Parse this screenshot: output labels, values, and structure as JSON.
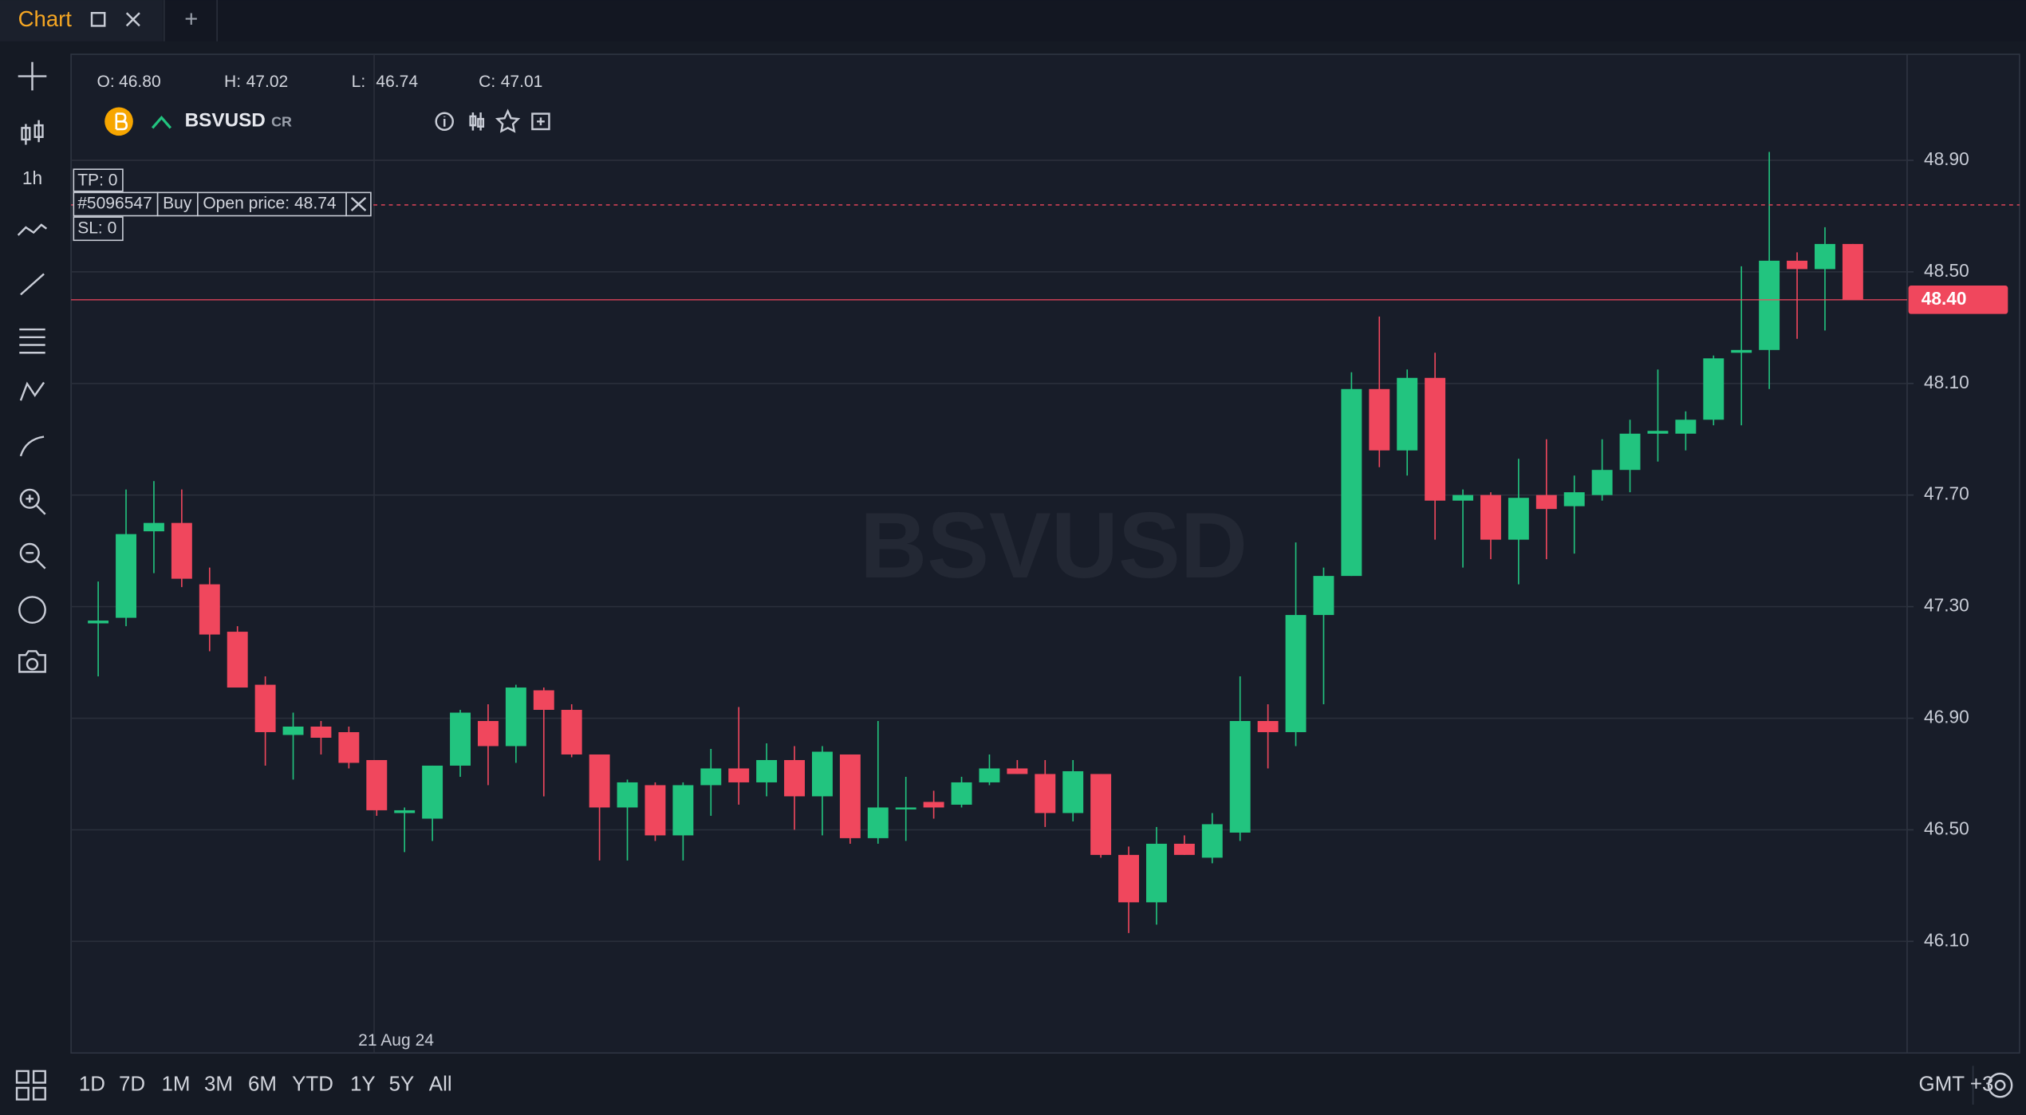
{
  "tabs": {
    "active": "Chart",
    "new": "+"
  },
  "toolbar": {
    "interval": "1h"
  },
  "header": {
    "ohlc": [
      {
        "label": "O:",
        "value": "46.80"
      },
      {
        "label": "H:",
        "value": "47.02"
      },
      {
        "label": "L:",
        "value": "46.74"
      },
      {
        "label": "C:",
        "value": "47.01"
      }
    ],
    "symbol": "BSVUSD",
    "exchange": "CR"
  },
  "order": {
    "tp": "TP: 0",
    "id": "#5096547",
    "side": "Buy",
    "sl": "SL: 0"
  },
  "chart_data": {
    "type": "candlestick",
    "watermark": "BSVUSD",
    "categories": [
      null,
      null,
      null,
      null,
      null,
      null,
      null,
      null,
      null,
      null,
      "21 Aug 24",
      null,
      null,
      null,
      null,
      null,
      null,
      null,
      null,
      null,
      null,
      null,
      null,
      null,
      null,
      null,
      null,
      null,
      null,
      null,
      null,
      null,
      null,
      null,
      null,
      null,
      null,
      null,
      null,
      null,
      null,
      null,
      null,
      null,
      null,
      null,
      null,
      null,
      null,
      null,
      null,
      null,
      null,
      null,
      null,
      null,
      null,
      null,
      null,
      null,
      null,
      null,
      null,
      null
    ],
    "open": [
      47.24,
      47.26,
      47.57,
      47.6,
      47.38,
      47.21,
      47.02,
      46.84,
      46.87,
      46.85,
      46.75,
      46.56,
      46.54,
      46.73,
      46.89,
      46.8,
      47.0,
      46.93,
      46.77,
      46.58,
      46.66,
      46.48,
      46.66,
      46.72,
      46.67,
      46.75,
      46.62,
      46.77,
      46.47,
      46.58,
      46.6,
      46.59,
      46.67,
      46.72,
      46.7,
      46.56,
      46.7,
      46.41,
      46.24,
      46.45,
      46.4,
      46.49,
      46.89,
      46.85,
      47.27,
      47.41,
      48.08,
      47.86,
      48.12,
      47.68,
      47.7,
      47.54,
      47.7,
      47.66,
      47.7,
      47.79,
      47.92,
      47.92,
      47.97,
      48.21,
      48.22,
      48.54,
      48.51,
      48.6
    ],
    "high": [
      47.39,
      47.72,
      47.75,
      47.72,
      47.44,
      47.23,
      47.05,
      46.92,
      46.89,
      46.87,
      46.75,
      46.58,
      46.73,
      46.93,
      46.95,
      47.02,
      47.01,
      46.95,
      46.77,
      46.68,
      46.67,
      46.67,
      46.79,
      46.94,
      46.81,
      46.8,
      46.8,
      46.77,
      46.89,
      46.69,
      46.64,
      46.69,
      46.77,
      46.75,
      46.75,
      46.75,
      46.7,
      46.44,
      46.51,
      46.48,
      46.56,
      47.05,
      46.95,
      47.53,
      47.44,
      48.14,
      48.34,
      48.15,
      48.21,
      47.72,
      47.71,
      47.83,
      47.9,
      47.77,
      47.9,
      47.97,
      48.15,
      48.0,
      48.2,
      48.52,
      48.93,
      48.57,
      48.66,
      48.6
    ],
    "low": [
      47.05,
      47.23,
      47.42,
      47.37,
      47.14,
      47.01,
      46.73,
      46.68,
      46.77,
      46.72,
      46.55,
      46.42,
      46.46,
      46.69,
      46.66,
      46.74,
      46.62,
      46.76,
      46.39,
      46.39,
      46.46,
      46.39,
      46.55,
      46.59,
      46.62,
      46.5,
      46.48,
      46.45,
      46.45,
      46.46,
      46.54,
      46.58,
      46.66,
      46.7,
      46.51,
      46.53,
      46.4,
      46.13,
      46.16,
      46.41,
      46.38,
      46.46,
      46.72,
      46.8,
      46.95,
      47.41,
      47.8,
      47.77,
      47.54,
      47.44,
      47.47,
      47.38,
      47.47,
      47.49,
      47.68,
      47.71,
      47.82,
      47.86,
      47.95,
      47.95,
      48.08,
      48.26,
      48.29,
      48.4
    ],
    "close": [
      47.25,
      47.56,
      47.6,
      47.4,
      47.2,
      47.01,
      46.85,
      46.87,
      46.83,
      46.74,
      46.57,
      46.57,
      46.73,
      46.92,
      46.8,
      47.01,
      46.93,
      46.77,
      46.58,
      46.67,
      46.48,
      46.66,
      46.72,
      46.67,
      46.75,
      46.62,
      46.78,
      46.47,
      46.58,
      46.58,
      46.58,
      46.67,
      46.72,
      46.7,
      46.56,
      46.71,
      46.41,
      46.24,
      46.45,
      46.41,
      46.52,
      46.89,
      46.85,
      47.27,
      47.41,
      48.08,
      47.86,
      48.12,
      47.68,
      47.7,
      47.54,
      47.69,
      47.65,
      47.71,
      47.79,
      47.92,
      47.93,
      47.97,
      48.19,
      48.22,
      48.54,
      48.51,
      48.6,
      48.4
    ],
    "up_color": "#22c47f",
    "down_color": "#f0475d",
    "ylim": [
      45.7,
      49.28
    ],
    "yticks": [
      {
        "value": 46.1,
        "label": "46.10"
      },
      {
        "value": 46.5,
        "label": "46.50"
      },
      {
        "value": 46.9,
        "label": "46.90"
      },
      {
        "value": 47.3,
        "label": "47.30"
      },
      {
        "value": 47.7,
        "label": "47.70"
      },
      {
        "value": 48.1,
        "label": "48.10"
      },
      {
        "value": 48.5,
        "label": "48.50"
      },
      {
        "value": 48.9,
        "label": "48.90"
      }
    ],
    "grid": true,
    "order_price": {
      "value": 48.74,
      "label": "Open price: 48.74"
    },
    "last_price": {
      "value": 48.4,
      "label": "48.40"
    },
    "last_price_color": "#f0475d"
  },
  "ranges": [
    "1D",
    "7D",
    "1M",
    "3M",
    "6M",
    "YTD",
    "1Y",
    "5Y",
    "All"
  ],
  "timezone": "GMT +3"
}
